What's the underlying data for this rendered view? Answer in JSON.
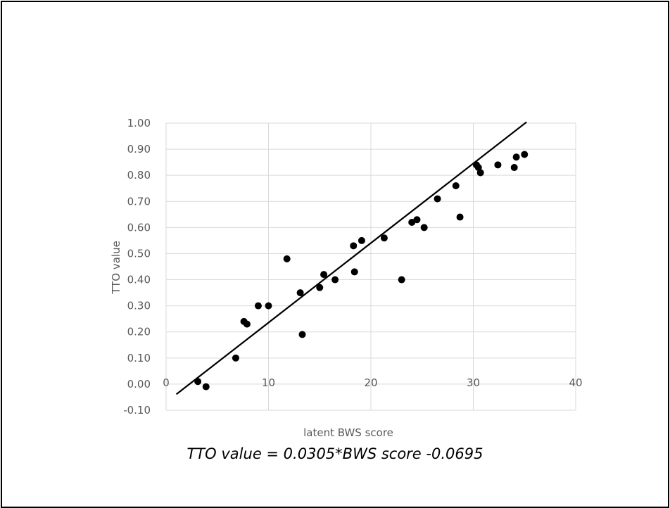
{
  "chart_data": {
    "type": "scatter",
    "xlabel": "latent BWS score",
    "ylabel": "TTO value",
    "xlim": [
      0,
      40
    ],
    "ylim": [
      -0.1,
      1.0
    ],
    "x_ticks": [
      "0",
      "10",
      "20",
      "30",
      "40"
    ],
    "y_ticks": [
      "-0.10",
      "0.00",
      "0.10",
      "0.20",
      "0.30",
      "0.40",
      "0.50",
      "0.60",
      "0.70",
      "0.80",
      "0.90",
      "1.00"
    ],
    "grid": true,
    "points": [
      {
        "x": 3.1,
        "y": 0.01
      },
      {
        "x": 3.9,
        "y": -0.01
      },
      {
        "x": 6.8,
        "y": 0.1
      },
      {
        "x": 7.6,
        "y": 0.24
      },
      {
        "x": 7.9,
        "y": 0.23
      },
      {
        "x": 9.0,
        "y": 0.3
      },
      {
        "x": 10.0,
        "y": 0.3
      },
      {
        "x": 11.8,
        "y": 0.48
      },
      {
        "x": 13.1,
        "y": 0.35
      },
      {
        "x": 13.3,
        "y": 0.19
      },
      {
        "x": 15.0,
        "y": 0.37
      },
      {
        "x": 15.4,
        "y": 0.42
      },
      {
        "x": 16.5,
        "y": 0.4
      },
      {
        "x": 18.3,
        "y": 0.53
      },
      {
        "x": 18.4,
        "y": 0.43
      },
      {
        "x": 19.1,
        "y": 0.55
      },
      {
        "x": 21.3,
        "y": 0.56
      },
      {
        "x": 23.0,
        "y": 0.4
      },
      {
        "x": 24.0,
        "y": 0.62
      },
      {
        "x": 24.5,
        "y": 0.63
      },
      {
        "x": 25.2,
        "y": 0.6
      },
      {
        "x": 26.5,
        "y": 0.71
      },
      {
        "x": 28.3,
        "y": 0.76
      },
      {
        "x": 28.7,
        "y": 0.64
      },
      {
        "x": 30.3,
        "y": 0.84
      },
      {
        "x": 30.5,
        "y": 0.83
      },
      {
        "x": 30.7,
        "y": 0.81
      },
      {
        "x": 32.4,
        "y": 0.84
      },
      {
        "x": 34.0,
        "y": 0.83
      },
      {
        "x": 34.2,
        "y": 0.87
      },
      {
        "x": 35.0,
        "y": 0.88
      }
    ],
    "trendline": {
      "slope": 0.0305,
      "intercept": -0.0695,
      "x_range": [
        1.0,
        35.2
      ]
    },
    "annotation": "TTO value = 0.0305*BWS score -0.0695"
  },
  "colors": {
    "point": "#000000",
    "trendline": "#000000",
    "grid": "#d9d9d9",
    "tick_text": "#595959"
  }
}
